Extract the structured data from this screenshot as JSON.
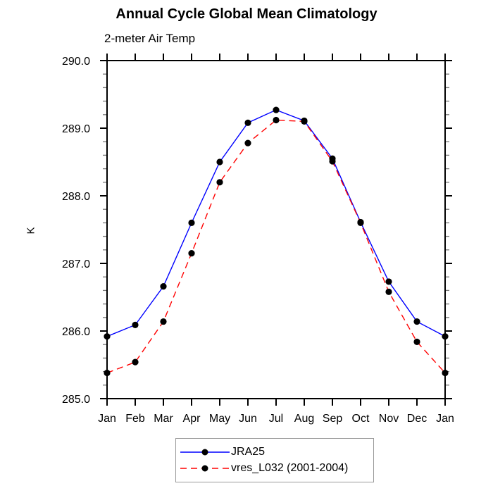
{
  "title": "Annual Cycle Global Mean Climatology",
  "subtitle": "2-meter Air Temp",
  "legend": {
    "border_color": "#999999",
    "position": "bottom-center"
  },
  "chart_data": {
    "type": "line",
    "x_categories": [
      "Jan",
      "Feb",
      "Mar",
      "Apr",
      "May",
      "Jun",
      "Jul",
      "Aug",
      "Sep",
      "Oct",
      "Nov",
      "Dec",
      "Jan"
    ],
    "y_tick_labels": [
      "285.0",
      "286.0",
      "287.0",
      "288.0",
      "289.0",
      "290.0"
    ],
    "ylabel": "K",
    "ylim": [
      285.0,
      290.0
    ],
    "y_major_step": 1.0,
    "y_minor_step": 0.2,
    "grid": false,
    "axis_color": "#000000",
    "minor_tick_color": "#777777",
    "marker_color": "#000000",
    "series": [
      {
        "name": "JRA25",
        "color": "#0000ff",
        "line_style": "solid",
        "marker": "filled-circle",
        "values": [
          285.92,
          286.09,
          286.66,
          287.6,
          288.5,
          289.08,
          289.27,
          289.11,
          288.55,
          287.61,
          286.73,
          286.14,
          285.92
        ]
      },
      {
        "name": "vres_L032 (2001-2004)",
        "color": "#ff0000",
        "line_style": "dashed",
        "marker": "filled-circle",
        "values": [
          285.38,
          285.54,
          286.14,
          287.15,
          288.2,
          288.78,
          289.12,
          289.1,
          288.51,
          287.6,
          286.58,
          285.84,
          285.38
        ]
      }
    ]
  }
}
